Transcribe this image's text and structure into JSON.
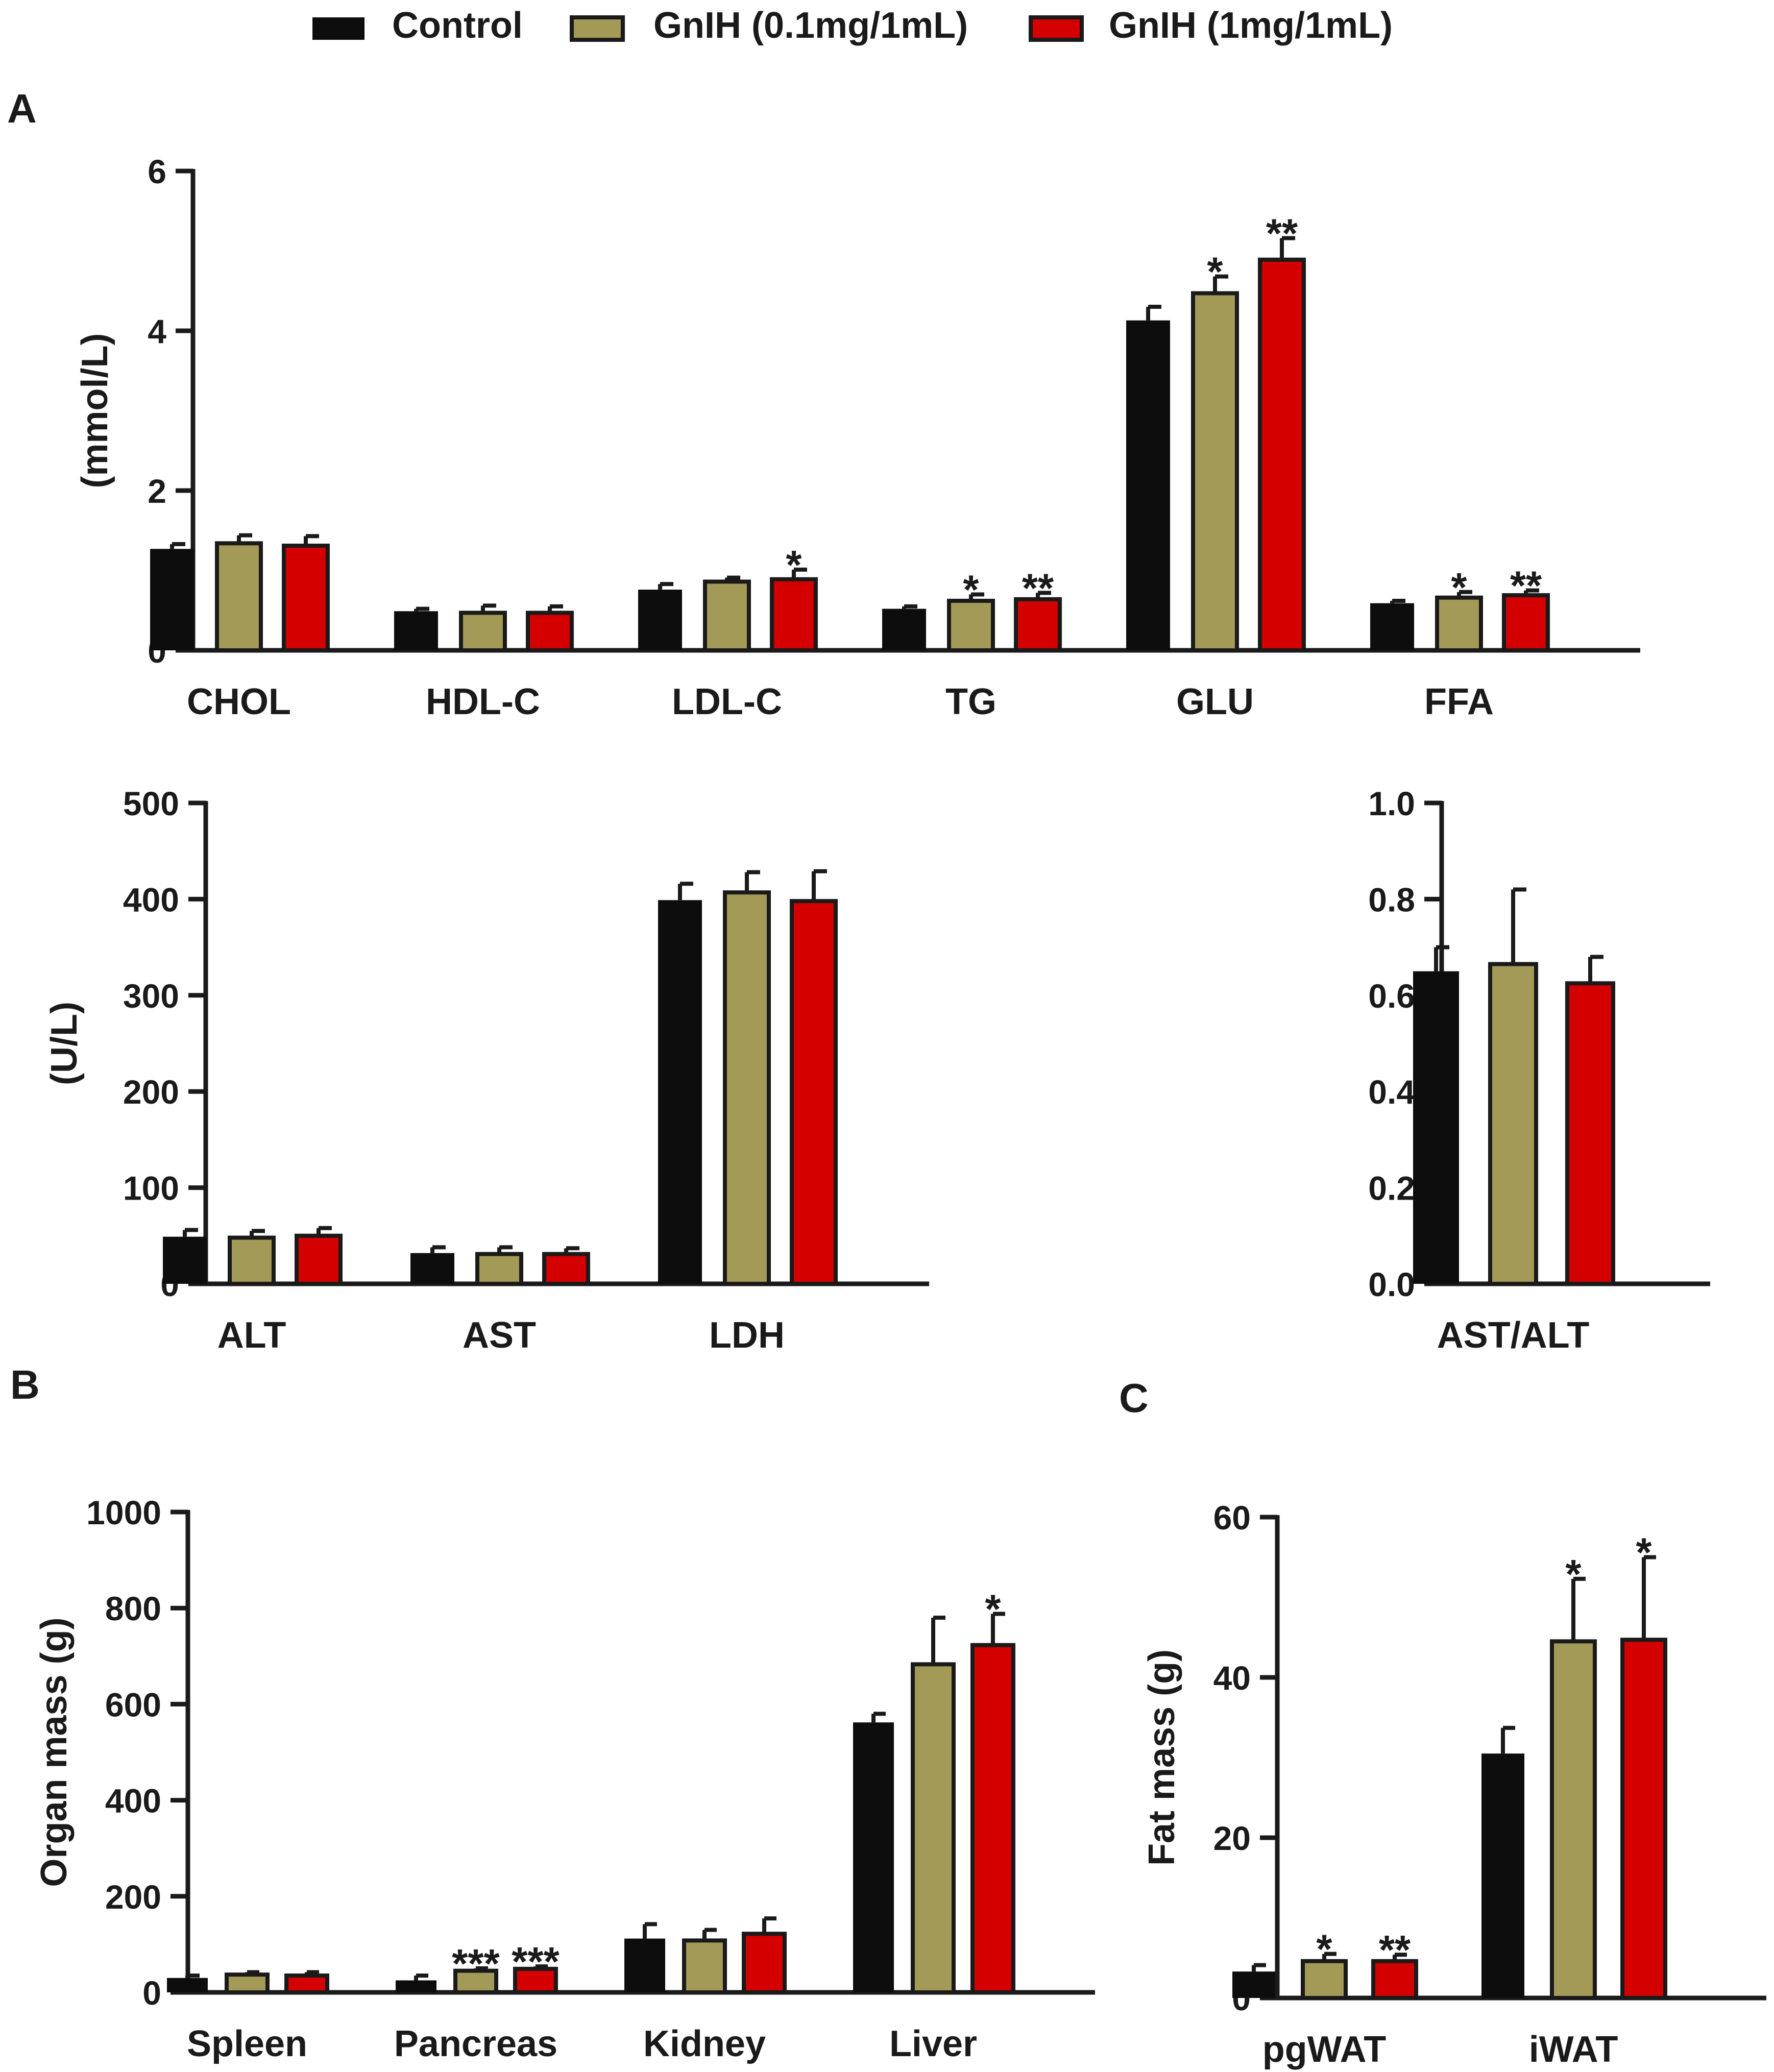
{
  "legend": {
    "items": [
      {
        "label": "Control",
        "color": "#0d0d0d"
      },
      {
        "label": "GnIH (0.1mg/1mL)",
        "color": "#a39a57"
      },
      {
        "label": "GnIH (1mg/1mL)",
        "color": "#d40000"
      }
    ]
  },
  "panel_labels": [
    "A",
    "B",
    "C"
  ],
  "chart_data": [
    {
      "id": "lipids",
      "type": "bar",
      "ylabel": "(mmol/L)",
      "ylim": [
        0,
        6
      ],
      "yticks": [
        "0",
        "2",
        "4",
        "6"
      ],
      "categories": [
        "CHOL",
        "HDL-C",
        "LDL-C",
        "TG",
        "GLU",
        "FFA"
      ],
      "series": [
        {
          "name": "Control",
          "values": [
            1.27,
            0.49,
            0.76,
            0.52,
            4.13,
            0.59
          ],
          "errors": [
            0.06,
            0.03,
            0.07,
            0.03,
            0.17,
            0.03
          ]
        },
        {
          "name": "GnIH (0.1mg/1mL)",
          "values": [
            1.34,
            0.47,
            0.86,
            0.62,
            4.47,
            0.66
          ],
          "errors": [
            0.1,
            0.09,
            0.05,
            0.08,
            0.21,
            0.07
          ]
        },
        {
          "name": "GnIH (1mg/1mL)",
          "values": [
            1.31,
            0.47,
            0.89,
            0.64,
            4.89,
            0.69
          ],
          "errors": [
            0.12,
            0.08,
            0.12,
            0.08,
            0.27,
            0.06
          ]
        }
      ],
      "annotations": [
        [
          "",
          "",
          "",
          "",
          "",
          ""
        ],
        [
          "",
          "",
          "",
          "*",
          "*",
          "*"
        ],
        [
          "",
          "",
          "*",
          "**",
          "**",
          "**"
        ]
      ]
    },
    {
      "id": "enzymes",
      "type": "bar",
      "ylabel": "(U/L)",
      "ylim": [
        0,
        500
      ],
      "yticks": [
        "0",
        "100",
        "200",
        "300",
        "400",
        "500"
      ],
      "categories": [
        "ALT",
        "AST",
        "LDH"
      ],
      "series": [
        {
          "name": "Control",
          "values": [
            49,
            32,
            399
          ],
          "errors": [
            7,
            6,
            17
          ]
        },
        {
          "name": "GnIH (0.1mg/1mL)",
          "values": [
            48,
            31,
            407
          ],
          "errors": [
            7,
            7,
            21
          ]
        },
        {
          "name": "GnIH (1mg/1mL)",
          "values": [
            50,
            31,
            398
          ],
          "errors": [
            8,
            6,
            31
          ]
        }
      ],
      "annotations": [
        [
          "",
          "",
          ""
        ],
        [
          "",
          "",
          ""
        ],
        [
          "",
          "",
          ""
        ]
      ]
    },
    {
      "id": "ratio",
      "type": "bar",
      "ylabel": "",
      "ylim": [
        0,
        1.0
      ],
      "yticks": [
        "0.0",
        "0.2",
        "0.4",
        "0.6",
        "0.8",
        "1.0"
      ],
      "categories": [
        "AST/ALT"
      ],
      "series": [
        {
          "name": "Control",
          "values": [
            0.65
          ],
          "errors": [
            0.05
          ]
        },
        {
          "name": "GnIH (0.1mg/1mL)",
          "values": [
            0.665
          ],
          "errors": [
            0.155
          ]
        },
        {
          "name": "GnIH (1mg/1mL)",
          "values": [
            0.625
          ],
          "errors": [
            0.055
          ]
        }
      ],
      "annotations": [
        [
          ""
        ],
        [
          ""
        ],
        [
          ""
        ]
      ]
    },
    {
      "id": "organs",
      "type": "bar",
      "ylabel": "Organ mass (g)",
      "ylim": [
        0,
        1000
      ],
      "yticks": [
        "0",
        "200",
        "400",
        "600",
        "800",
        "1000"
      ],
      "categories": [
        "Spleen",
        "Pancreas",
        "Kidney",
        "Liver"
      ],
      "series": [
        {
          "name": "Control",
          "values": [
            30,
            25,
            112,
            562
          ],
          "errors": [
            5,
            10,
            30,
            18
          ]
        },
        {
          "name": "GnIH (0.1mg/1mL)",
          "values": [
            37,
            45,
            108,
            683
          ],
          "errors": [
            5,
            5,
            22,
            97
          ]
        },
        {
          "name": "GnIH (1mg/1mL)",
          "values": [
            35,
            49,
            122,
            723
          ],
          "errors": [
            7,
            5,
            32,
            65
          ]
        }
      ],
      "annotations": [
        [
          "",
          "",
          "",
          ""
        ],
        [
          "",
          "***",
          "",
          ""
        ],
        [
          "",
          "***",
          "",
          "*"
        ]
      ]
    },
    {
      "id": "fat",
      "type": "bar",
      "ylabel": "Fat mass (g)",
      "ylim": [
        0,
        60
      ],
      "yticks": [
        "0",
        "20",
        "40",
        "60"
      ],
      "categories": [
        "pgWAT",
        "iWAT"
      ],
      "series": [
        {
          "name": "Control",
          "values": [
            3.3,
            30.5
          ],
          "errors": [
            0.8,
            3.2
          ]
        },
        {
          "name": "GnIH (0.1mg/1mL)",
          "values": [
            4.6,
            44.5
          ],
          "errors": [
            0.9,
            7.8
          ]
        },
        {
          "name": "GnIH (1mg/1mL)",
          "values": [
            4.6,
            44.7
          ],
          "errors": [
            0.8,
            10.3
          ]
        }
      ],
      "annotations": [
        [
          "",
          ""
        ],
        [
          "*",
          "*"
        ],
        [
          "**",
          "*"
        ]
      ]
    }
  ]
}
